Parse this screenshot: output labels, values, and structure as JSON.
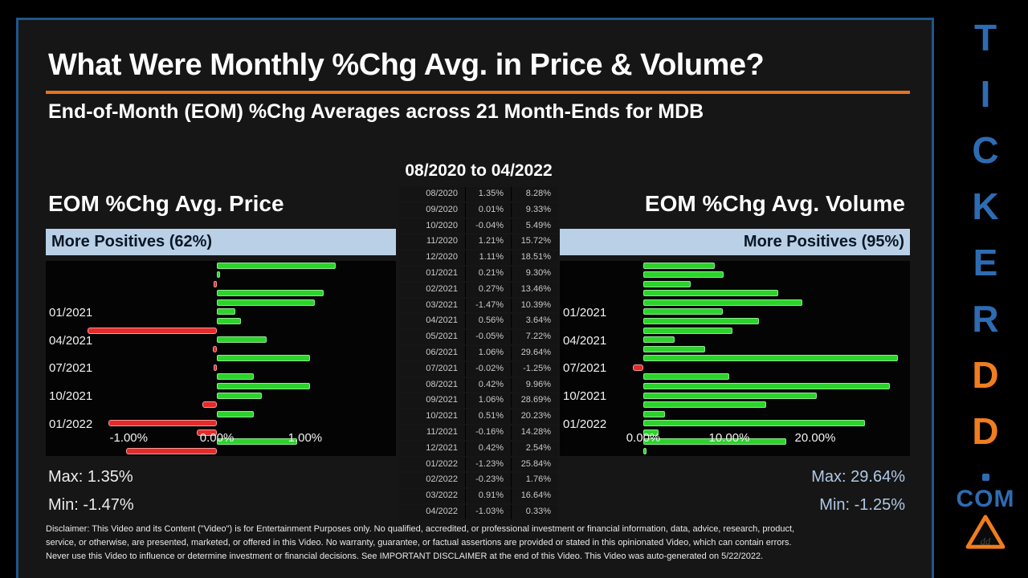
{
  "slide": {
    "title": "What Were Monthly %Chg Avg. in Price & Volume?",
    "subtitle": "End-of-Month (EOM) %Chg Averages across 21 Month-Ends for MDB",
    "period_header": "08/2020 to 04/2022",
    "disclaimer_lines": [
      "Disclaimer: This Video and its Content (\"Video\") is for Entertainment Purposes only. No qualified, accredited, or professional investment or financial information, data, advice, research, product,",
      "service, or otherwise, are presented, marketed, or offered in this Video. No warranty, guarantee, or factual assertions are provided or stated in this opinionated Video, which can contain errors.",
      "Never use this Video to influence or determine investment or financial decisions. See IMPORTANT DISCLAIMER at the end of this Video. This Video was auto-generated on 5/22/2022."
    ]
  },
  "chart_data": [
    {
      "type": "bar",
      "orientation": "horizontal",
      "title": "EOM %Chg Avg. Price",
      "banner": "More Positives (62%)",
      "max_label": "Max: 1.35%",
      "min_label": "Min: -1.47%",
      "max": 1.35,
      "min": -1.47,
      "categories": [
        "08/2020",
        "09/2020",
        "10/2020",
        "11/2020",
        "12/2020",
        "01/2021",
        "02/2021",
        "03/2021",
        "04/2021",
        "05/2021",
        "06/2021",
        "07/2021",
        "08/2021",
        "09/2021",
        "10/2021",
        "11/2021",
        "12/2021",
        "01/2022",
        "02/2022",
        "03/2022",
        "04/2022"
      ],
      "values": [
        1.35,
        0.01,
        -0.04,
        1.21,
        1.11,
        0.21,
        0.27,
        -1.47,
        0.56,
        -0.05,
        1.06,
        -0.02,
        0.42,
        1.06,
        0.51,
        -0.16,
        0.42,
        -1.23,
        -0.23,
        0.91,
        -1.03
      ],
      "x_tick_values": [
        -1,
        0,
        1
      ],
      "x_tick_labels": [
        "-1.00%",
        "0.00%",
        "1.00%"
      ],
      "y_tick_indices": [
        5,
        8,
        11,
        14,
        17
      ],
      "xlim": [
        -1.94,
        2.03
      ],
      "grid": false,
      "legend": "none"
    },
    {
      "type": "bar",
      "orientation": "horizontal",
      "title": "EOM %Chg Avg. Volume",
      "banner": "More Positives (95%)",
      "max_label": "Max: 29.64%",
      "min_label": "Min: -1.25%",
      "max": 29.64,
      "min": -1.25,
      "categories": [
        "08/2020",
        "09/2020",
        "10/2020",
        "11/2020",
        "12/2020",
        "01/2021",
        "02/2021",
        "03/2021",
        "04/2021",
        "05/2021",
        "06/2021",
        "07/2021",
        "08/2021",
        "09/2021",
        "10/2021",
        "11/2021",
        "12/2021",
        "01/2022",
        "02/2022",
        "03/2022",
        "04/2022"
      ],
      "values": [
        8.28,
        9.33,
        5.49,
        15.72,
        18.51,
        9.3,
        13.46,
        10.39,
        3.64,
        7.22,
        29.64,
        -1.25,
        9.96,
        28.69,
        20.23,
        14.28,
        2.54,
        25.84,
        1.76,
        16.64,
        0.33
      ],
      "x_tick_values": [
        0,
        10,
        20
      ],
      "x_tick_labels": [
        "0.00%",
        "10.00%",
        "20.00%"
      ],
      "y_tick_indices": [
        5,
        8,
        11,
        14,
        17
      ],
      "xlim": [
        -9.72,
        31.03
      ],
      "grid": false,
      "legend": "none"
    }
  ],
  "table": {
    "columns": [
      "month",
      "price_pct_chg",
      "volume_pct_chg"
    ],
    "rows": [
      [
        "08/2020",
        "1.35%",
        "8.28%"
      ],
      [
        "09/2020",
        "0.01%",
        "9.33%"
      ],
      [
        "10/2020",
        "-0.04%",
        "5.49%"
      ],
      [
        "11/2020",
        "1.21%",
        "15.72%"
      ],
      [
        "12/2020",
        "1.11%",
        "18.51%"
      ],
      [
        "01/2021",
        "0.21%",
        "9.30%"
      ],
      [
        "02/2021",
        "0.27%",
        "13.46%"
      ],
      [
        "03/2021",
        "-1.47%",
        "10.39%"
      ],
      [
        "04/2021",
        "0.56%",
        "3.64%"
      ],
      [
        "05/2021",
        "-0.05%",
        "7.22%"
      ],
      [
        "06/2021",
        "1.06%",
        "29.64%"
      ],
      [
        "07/2021",
        "-0.02%",
        "-1.25%"
      ],
      [
        "08/2021",
        "0.42%",
        "9.96%"
      ],
      [
        "09/2021",
        "1.06%",
        "28.69%"
      ],
      [
        "10/2021",
        "0.51%",
        "20.23%"
      ],
      [
        "11/2021",
        "-0.16%",
        "14.28%"
      ],
      [
        "12/2021",
        "0.42%",
        "2.54%"
      ],
      [
        "01/2022",
        "-1.23%",
        "25.84%"
      ],
      [
        "02/2022",
        "-0.23%",
        "1.76%"
      ],
      [
        "03/2022",
        "0.91%",
        "16.64%"
      ],
      [
        "04/2022",
        "-1.03%",
        "0.33%"
      ]
    ]
  },
  "branding": {
    "letters": [
      {
        "char": "T",
        "color": "#2e6cb2"
      },
      {
        "char": "I",
        "color": "#2e6cb2"
      },
      {
        "char": "C",
        "color": "#2e6cb2"
      },
      {
        "char": "K",
        "color": "#2e6cb2"
      },
      {
        "char": "E",
        "color": "#2e6cb2"
      },
      {
        "char": "R",
        "color": "#2e6cb2"
      },
      {
        "char": "D",
        "color": "#f07d1e"
      },
      {
        "char": "D",
        "color": "#f07d1e"
      }
    ],
    "dot": ".",
    "com": "COM",
    "logo": "warning-triangle-logo"
  },
  "colors": {
    "positive": "#2bd32b",
    "negative": "#e32b2b",
    "banner_bg": "#b9d0e6",
    "banner_text": "#0b1726",
    "accent_orange": "#e8731e",
    "frame_blue": "#1e568c",
    "brand_blue": "#2e6cb2",
    "brand_orange": "#f07d1e",
    "volume_stat_text": "#b0c8e4"
  }
}
